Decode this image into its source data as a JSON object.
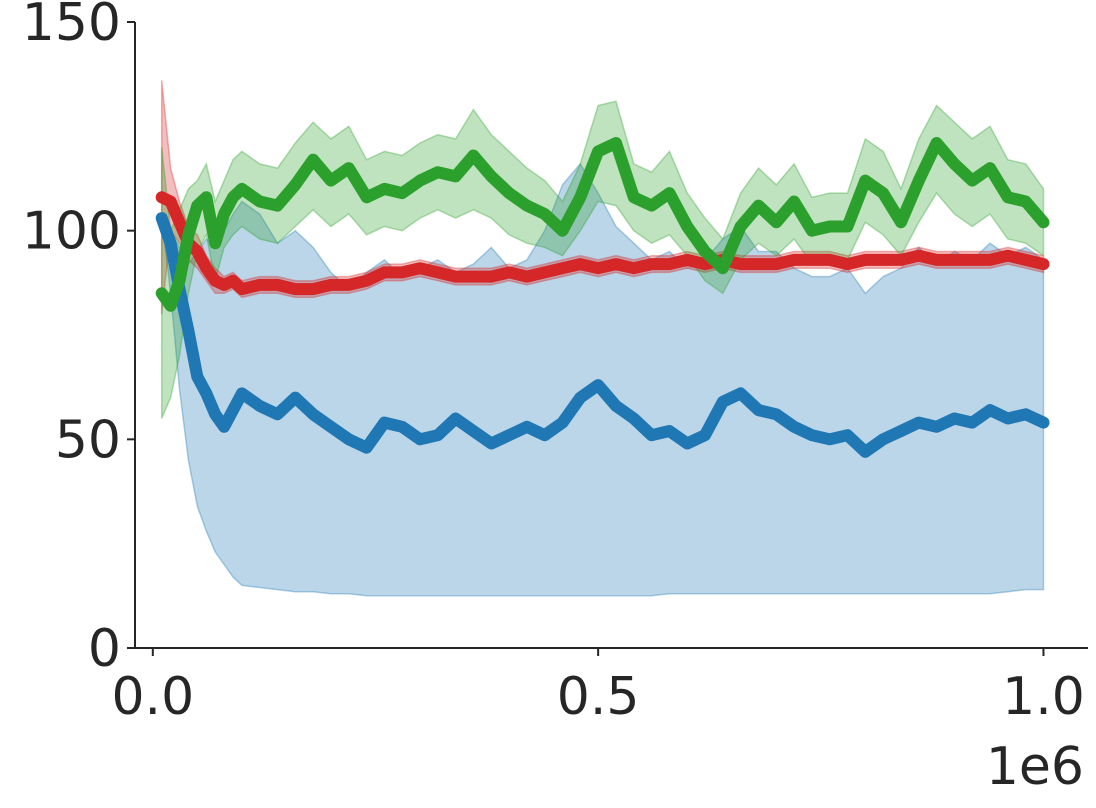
{
  "chart_data": {
    "type": "line",
    "title": "",
    "xlabel": "",
    "ylabel": "",
    "x_exponent_label": "1e6",
    "xlim": [
      -0.02,
      1.05
    ],
    "ylim": [
      0,
      150
    ],
    "x_ticks": [
      0.0,
      0.5,
      1.0
    ],
    "x_tick_labels": [
      "0.0",
      "0.5",
      "1.0"
    ],
    "y_ticks": [
      0,
      50,
      100,
      150
    ],
    "y_tick_labels": [
      "0",
      "50",
      "100",
      "150"
    ],
    "grid": false,
    "legend": "none",
    "series": [
      {
        "color": "#1f77b4",
        "x": [
          0.01,
          0.02,
          0.03,
          0.04,
          0.05,
          0.06,
          0.07,
          0.08,
          0.09,
          0.1,
          0.12,
          0.14,
          0.16,
          0.18,
          0.2,
          0.22,
          0.24,
          0.26,
          0.28,
          0.3,
          0.32,
          0.34,
          0.36,
          0.38,
          0.4,
          0.42,
          0.44,
          0.46,
          0.48,
          0.5,
          0.52,
          0.54,
          0.56,
          0.58,
          0.6,
          0.62,
          0.64,
          0.66,
          0.68,
          0.7,
          0.72,
          0.74,
          0.76,
          0.78,
          0.8,
          0.82,
          0.84,
          0.86,
          0.88,
          0.9,
          0.92,
          0.94,
          0.96,
          0.98,
          1.0
        ],
        "y": [
          103,
          97,
          86,
          76,
          65,
          61,
          56,
          53,
          57,
          61,
          58,
          56,
          60,
          56,
          53,
          50,
          48,
          54,
          53,
          50,
          51,
          55,
          52,
          49,
          51,
          53,
          51,
          54,
          60,
          63,
          58,
          55,
          51,
          52,
          49,
          51,
          59,
          61,
          57,
          56,
          53,
          51,
          50,
          51,
          47,
          50,
          52,
          54,
          53,
          55,
          54,
          57,
          55,
          56,
          54
        ],
        "lower": [
          103,
          85,
          62,
          45,
          34,
          28,
          23,
          20,
          17,
          15,
          14.5,
          14,
          13.5,
          13.5,
          13,
          13,
          12.5,
          12.5,
          12.5,
          12.5,
          12.5,
          12.5,
          12.5,
          12.5,
          12.5,
          12.5,
          12.5,
          12.5,
          12.5,
          12.5,
          12.5,
          12.5,
          12.5,
          13,
          13,
          13,
          13,
          13,
          13,
          13,
          13,
          13,
          13,
          13,
          13,
          13,
          13,
          13,
          13,
          13,
          13,
          13,
          13.5,
          14,
          14
        ],
        "upper": [
          103,
          100,
          96,
          92,
          95,
          98,
          96,
          100,
          104,
          107,
          104,
          97,
          100,
          96,
          90,
          86,
          90,
          93,
          89,
          91,
          93,
          90,
          92,
          96,
          91,
          93,
          100,
          111,
          116,
          109,
          101,
          97,
          93,
          95,
          91,
          93,
          98,
          101,
          95,
          95,
          91,
          89,
          89,
          91,
          85,
          89,
          91,
          96,
          92,
          95,
          93,
          97,
          94,
          96,
          93
        ]
      },
      {
        "color": "#d62728",
        "x": [
          0.01,
          0.02,
          0.03,
          0.04,
          0.05,
          0.06,
          0.07,
          0.08,
          0.09,
          0.1,
          0.12,
          0.14,
          0.16,
          0.18,
          0.2,
          0.22,
          0.24,
          0.26,
          0.28,
          0.3,
          0.32,
          0.34,
          0.36,
          0.38,
          0.4,
          0.42,
          0.44,
          0.46,
          0.48,
          0.5,
          0.52,
          0.54,
          0.56,
          0.58,
          0.6,
          0.62,
          0.64,
          0.66,
          0.68,
          0.7,
          0.72,
          0.74,
          0.76,
          0.78,
          0.8,
          0.82,
          0.84,
          0.86,
          0.88,
          0.9,
          0.92,
          0.94,
          0.96,
          0.98,
          1.0
        ],
        "y": [
          108,
          107,
          102,
          97,
          95,
          91,
          88,
          87,
          88,
          86,
          87,
          87,
          86,
          86,
          87,
          87,
          88,
          90,
          90,
          91,
          90,
          89,
          89,
          89,
          90,
          89,
          90,
          91,
          92,
          91,
          92,
          91,
          92,
          92,
          93,
          92,
          93,
          92,
          92,
          92,
          93,
          93,
          93,
          92,
          93,
          93,
          93,
          94,
          93,
          93,
          93,
          93,
          94,
          93,
          92
        ],
        "lower": [
          80,
          100,
          97,
          93,
          91,
          88,
          85,
          85,
          86,
          84,
          85,
          85,
          84,
          84,
          85,
          85,
          86,
          88,
          88,
          89,
          88,
          87,
          87,
          87,
          88,
          87,
          88,
          89,
          90,
          89,
          90,
          89,
          90,
          90,
          91,
          90,
          91,
          90,
          90,
          90,
          91,
          91,
          91,
          90,
          91,
          91,
          91,
          92,
          91,
          91,
          91,
          91,
          92,
          91,
          90
        ],
        "upper": [
          136,
          115,
          107,
          101,
          99,
          94,
          91,
          89,
          90,
          88,
          89,
          89,
          88,
          88,
          89,
          89,
          90,
          92,
          92,
          93,
          92,
          91,
          91,
          91,
          92,
          91,
          92,
          93,
          94,
          93,
          94,
          93,
          94,
          94,
          95,
          94,
          95,
          94,
          94,
          94,
          95,
          95,
          95,
          94,
          95,
          95,
          95,
          96,
          95,
          95,
          95,
          95,
          96,
          95,
          94
        ]
      },
      {
        "color": "#2ca02c",
        "x": [
          0.01,
          0.02,
          0.03,
          0.04,
          0.05,
          0.06,
          0.07,
          0.08,
          0.09,
          0.1,
          0.12,
          0.14,
          0.16,
          0.18,
          0.2,
          0.22,
          0.24,
          0.26,
          0.28,
          0.3,
          0.32,
          0.34,
          0.36,
          0.38,
          0.4,
          0.42,
          0.44,
          0.46,
          0.48,
          0.5,
          0.52,
          0.54,
          0.56,
          0.58,
          0.6,
          0.62,
          0.64,
          0.66,
          0.68,
          0.7,
          0.72,
          0.74,
          0.76,
          0.78,
          0.8,
          0.82,
          0.84,
          0.86,
          0.88,
          0.9,
          0.92,
          0.94,
          0.96,
          0.98,
          1.0
        ],
        "y": [
          85,
          82,
          88,
          99,
          106,
          108,
          97,
          104,
          108,
          110,
          107,
          106,
          111,
          117,
          112,
          115,
          108,
          110,
          109,
          112,
          114,
          113,
          118,
          113,
          109,
          106,
          104,
          100,
          108,
          119,
          121,
          108,
          106,
          109,
          101,
          95,
          91,
          101,
          106,
          102,
          107,
          100,
          101,
          101,
          112,
          109,
          102,
          112,
          121,
          116,
          112,
          115,
          108,
          107,
          102
        ],
        "lower": [
          55,
          60,
          70,
          85,
          95,
          99,
          88,
          96,
          99,
          101,
          98,
          97,
          101,
          105,
          101,
          104,
          99,
          101,
          100,
          103,
          105,
          103,
          105,
          103,
          99,
          97,
          96,
          94,
          100,
          107,
          106,
          100,
          97,
          99,
          94,
          88,
          85,
          93,
          97,
          94,
          98,
          92,
          93,
          93,
          102,
          99,
          94,
          102,
          109,
          104,
          101,
          104,
          98,
          97,
          94
        ],
        "upper": [
          120,
          100,
          105,
          110,
          112,
          116,
          107,
          112,
          117,
          119,
          116,
          115,
          121,
          126,
          122,
          125,
          117,
          119,
          118,
          121,
          123,
          122,
          129,
          123,
          119,
          115,
          112,
          107,
          116,
          130,
          131,
          116,
          114,
          119,
          109,
          103,
          98,
          109,
          115,
          111,
          116,
          108,
          109,
          109,
          122,
          119,
          110,
          122,
          130,
          126,
          122,
          125,
          117,
          116,
          110
        ]
      }
    ]
  }
}
